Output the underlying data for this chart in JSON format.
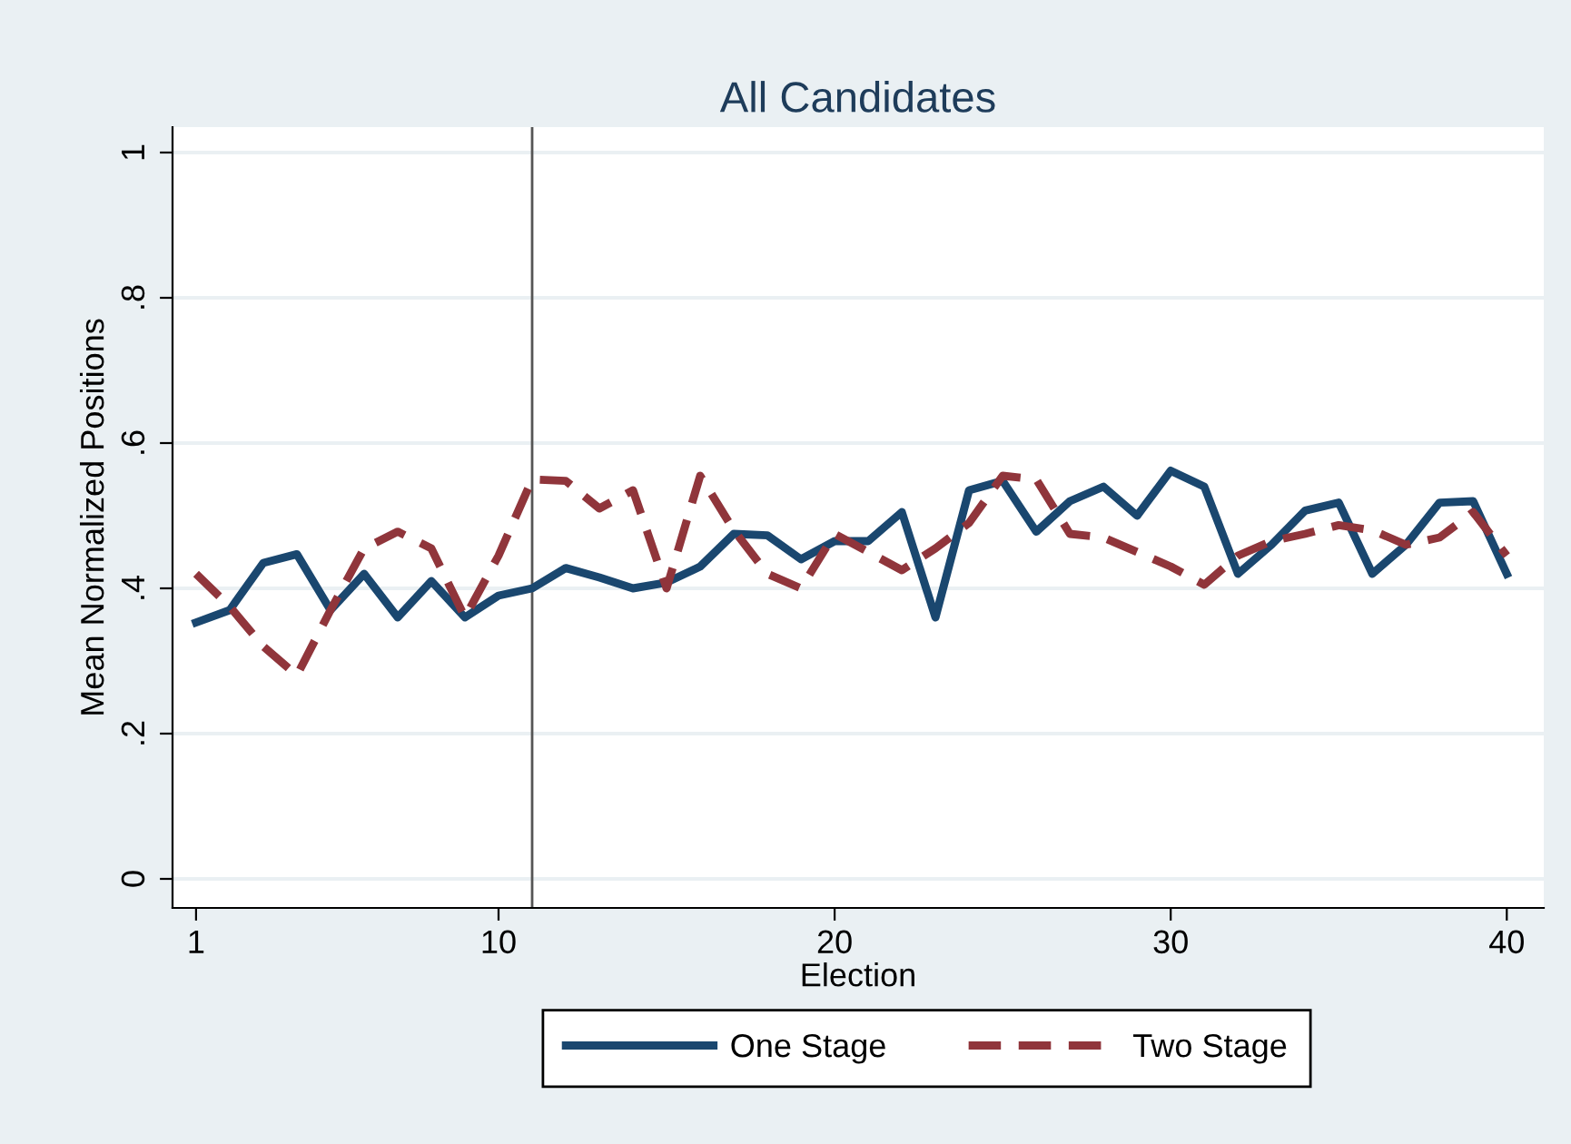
{
  "chart_data": {
    "type": "line",
    "title": "All Candidates",
    "xlabel": "Election",
    "ylabel": "Mean Normalized Positions",
    "x": [
      1,
      2,
      3,
      4,
      5,
      6,
      7,
      8,
      9,
      10,
      11,
      12,
      13,
      14,
      15,
      16,
      17,
      18,
      19,
      20,
      21,
      22,
      23,
      24,
      25,
      26,
      27,
      28,
      29,
      30,
      31,
      32,
      33,
      34,
      35,
      36,
      37,
      38,
      39,
      40
    ],
    "series": [
      {
        "name": "One Stage",
        "color": "#1a476f",
        "line_style": "solid",
        "values": [
          0.353,
          0.37,
          0.435,
          0.447,
          0.37,
          0.42,
          0.36,
          0.41,
          0.36,
          0.39,
          0.4,
          0.428,
          0.415,
          0.4,
          0.408,
          0.43,
          0.475,
          0.473,
          0.44,
          0.465,
          0.465,
          0.505,
          0.36,
          0.535,
          0.548,
          0.478,
          0.52,
          0.54,
          0.5,
          0.562,
          0.54,
          0.42,
          0.46,
          0.507,
          0.518,
          0.42,
          0.46,
          0.518,
          0.52,
          0.42
        ]
      },
      {
        "name": "Two Stage",
        "color": "#90353b",
        "line_style": "dashed",
        "values": [
          0.42,
          0.375,
          0.32,
          0.28,
          0.37,
          0.455,
          0.478,
          0.455,
          0.36,
          0.445,
          0.55,
          0.548,
          0.51,
          0.535,
          0.4,
          0.555,
          0.48,
          0.42,
          0.4,
          0.475,
          0.45,
          0.425,
          0.455,
          0.49,
          0.555,
          0.55,
          0.475,
          0.47,
          0.45,
          0.43,
          0.405,
          0.445,
          0.465,
          0.475,
          0.487,
          0.48,
          0.46,
          0.47,
          0.505,
          0.445
        ]
      }
    ],
    "xlim": [
      0.3,
      41.1
    ],
    "xticks": [
      1,
      10,
      20,
      30,
      40
    ],
    "ylim": [
      -0.04,
      1.035
    ],
    "yticks": [
      0,
      {
        "value": 0.2,
        "label": ".2"
      },
      {
        "value": 0.4,
        "label": ".4"
      },
      {
        "value": 0.6,
        "label": ".6"
      },
      {
        "value": 0.8,
        "label": ".8"
      },
      1
    ],
    "ref_lines": [
      {
        "axis": "x",
        "value": 11,
        "color": "#555555",
        "line_style": "solid"
      }
    ],
    "grid": "y",
    "legend": "bottom"
  }
}
